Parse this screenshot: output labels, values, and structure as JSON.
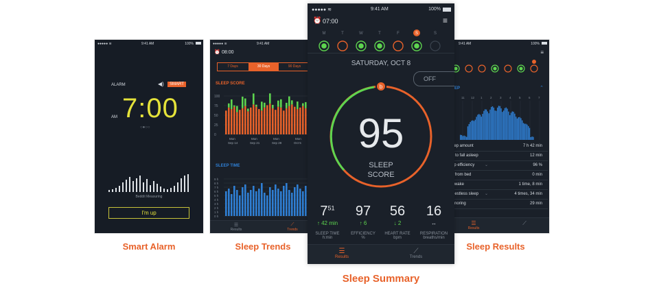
{
  "captions": {
    "smart_alarm": "Smart Alarm",
    "sleep_trends": "Sleep Trends",
    "sleep_summary": "Sleep Summary",
    "sleep_results": "Sleep Results"
  },
  "status_bar": {
    "time": "9:41 AM",
    "battery": "100%"
  },
  "colors": {
    "accent": "#e8622a",
    "green": "#5ed54f",
    "yellow": "#e4e23a",
    "blue": "#2f7fd4",
    "bg": "#1a2029"
  },
  "alarm_screen": {
    "alarm_label": "ALARM",
    "smart_badge": "SMART",
    "volume_icon": "speaker-icon",
    "time": "7:00",
    "am": "AM",
    "measuring": "Beddit Measuring",
    "button": "I'm up"
  },
  "trends_screen": {
    "alarm_time": "08:00",
    "ranges": [
      "7 Days",
      "30 Days",
      "90 Days"
    ],
    "selected_range": "30 Days",
    "score_title": "SLEEP SCORE",
    "score_ticks": [
      "100",
      "75",
      "50",
      "25",
      "0"
    ],
    "date_labels": [
      {
        "day": "Mon",
        "date": "Sep 14"
      },
      {
        "day": "Mon",
        "date": "Sep 21"
      },
      {
        "day": "Mon",
        "date": "Sep 28"
      },
      {
        "day": "Mon",
        "date": "Oct 5"
      }
    ],
    "time_title": "SLEEP TIME",
    "time_ticks": [
      "9 h",
      "8 h",
      "7 h",
      "6 h",
      "5 h",
      "4 h",
      "3 h",
      "2 h",
      "1 h",
      "0 h"
    ],
    "tabs": [
      "Results",
      "Trends"
    ]
  },
  "summary_screen": {
    "alarm_time": "07:00",
    "weekdays": [
      "M",
      "T",
      "W",
      "T",
      "F",
      "S",
      "S"
    ],
    "today_badge": "S",
    "date": "SATURDAY, OCT 8",
    "off_button": "OFF",
    "score": "95",
    "score_label_1": "SLEEP",
    "score_label_2": "SCORE",
    "metrics": [
      {
        "value": "7",
        "sup": "51",
        "delta": "↑ 42 min",
        "label": "SLEEP TIME",
        "unit": "h:min"
      },
      {
        "value": "97",
        "sup": "",
        "delta": "↑ 6",
        "label": "EFFICIENCY",
        "unit": "%"
      },
      {
        "value": "56",
        "sup": "",
        "delta": "↓ 2",
        "label": "HEART RATE",
        "unit": "bpm"
      },
      {
        "value": "16",
        "sup": "",
        "delta": "↔",
        "label": "RESPIRATION",
        "unit": "breaths/min"
      }
    ],
    "tabs": [
      "Results",
      "Trends"
    ]
  },
  "results_screen": {
    "section": "EEP",
    "ticks": [
      "11",
      "12",
      "1",
      "2",
      "3",
      "4",
      "5",
      "6",
      "7"
    ],
    "rows": [
      {
        "label": "eep amount",
        "value": "7 h 42 min"
      },
      {
        "label": "e to fall asleep",
        "value": "12 min"
      },
      {
        "label": "ep efficiency",
        "value": "96 %"
      },
      {
        "label": "y from bed",
        "value": "0 min"
      },
      {
        "label": "Awake",
        "value": "1 time, 8 min"
      },
      {
        "label": "Restless sleep",
        "value": "4 times, 34 min"
      },
      {
        "label": "Snoring",
        "value": "29 min"
      }
    ],
    "tabs": [
      "Results",
      "Trends"
    ]
  }
}
